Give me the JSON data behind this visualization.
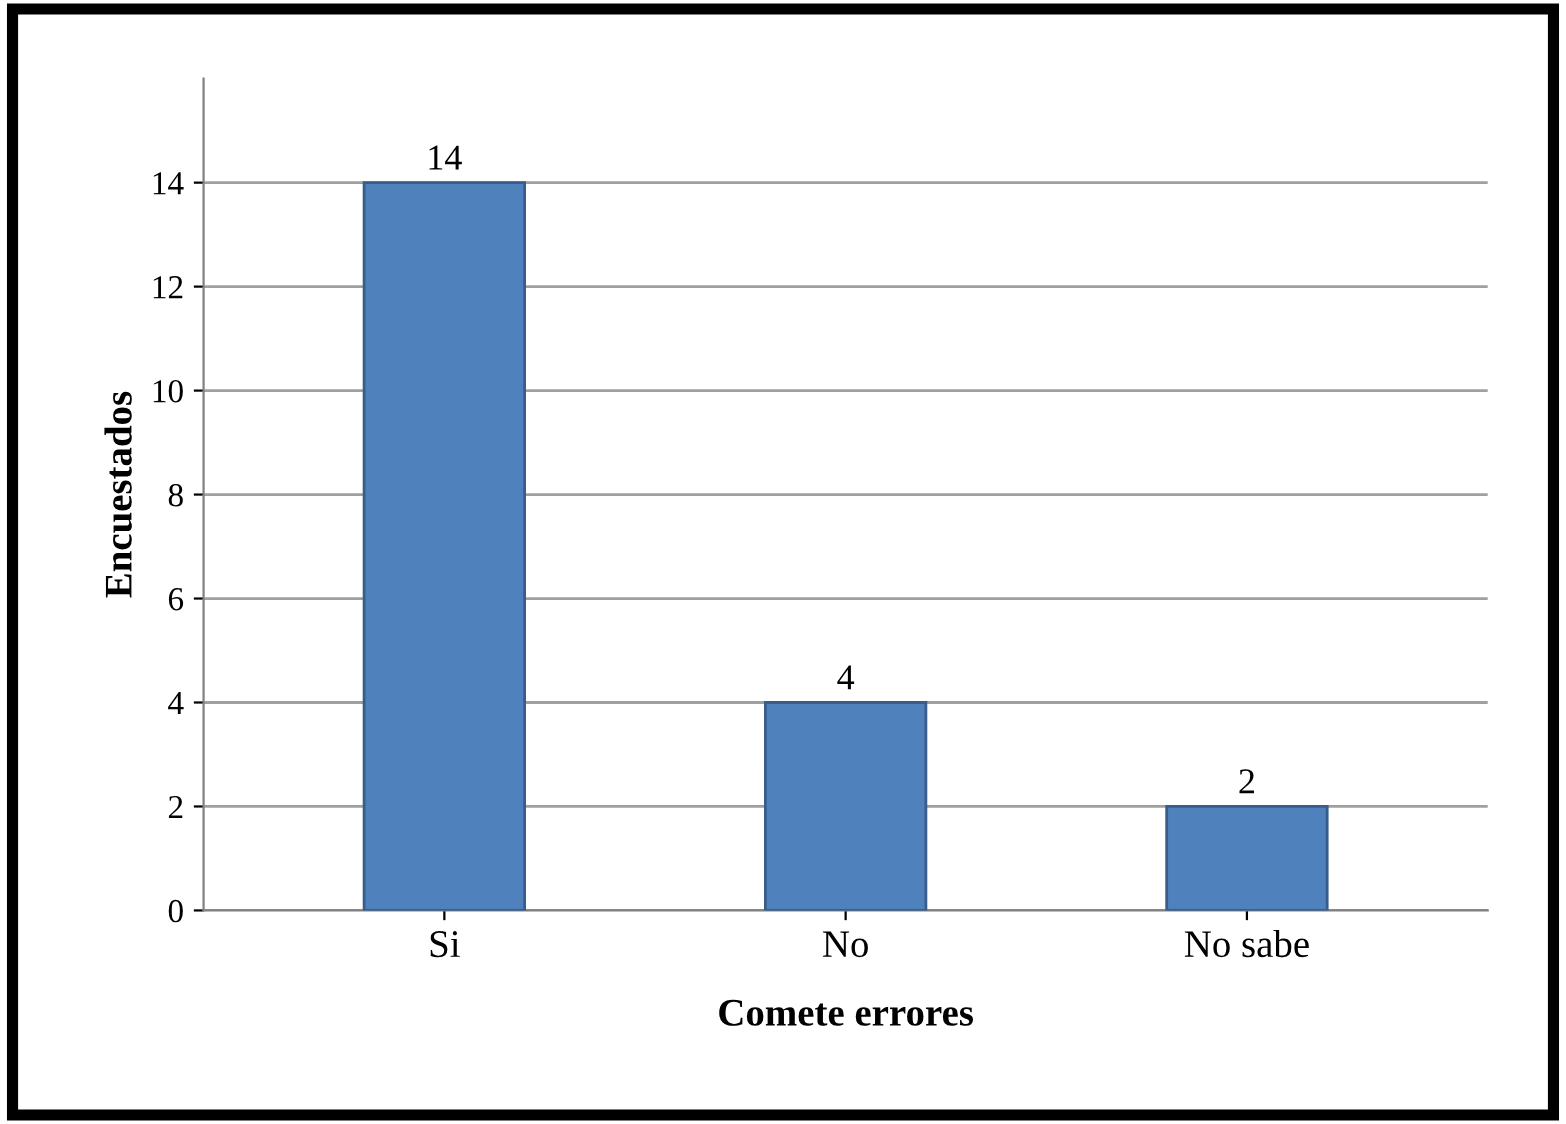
{
  "chart_data": {
    "type": "bar",
    "xlabel": "Comete errores",
    "ylabel": "Encuestados",
    "categories": [
      "Si",
      "No",
      "No sabe"
    ],
    "values": [
      14,
      4,
      2
    ],
    "color": "#4f81bd",
    "ylim": [
      0,
      16
    ],
    "yticks": [
      0,
      2,
      4,
      6,
      8,
      10,
      12,
      14
    ],
    "grid": "y",
    "data_labels": true
  }
}
